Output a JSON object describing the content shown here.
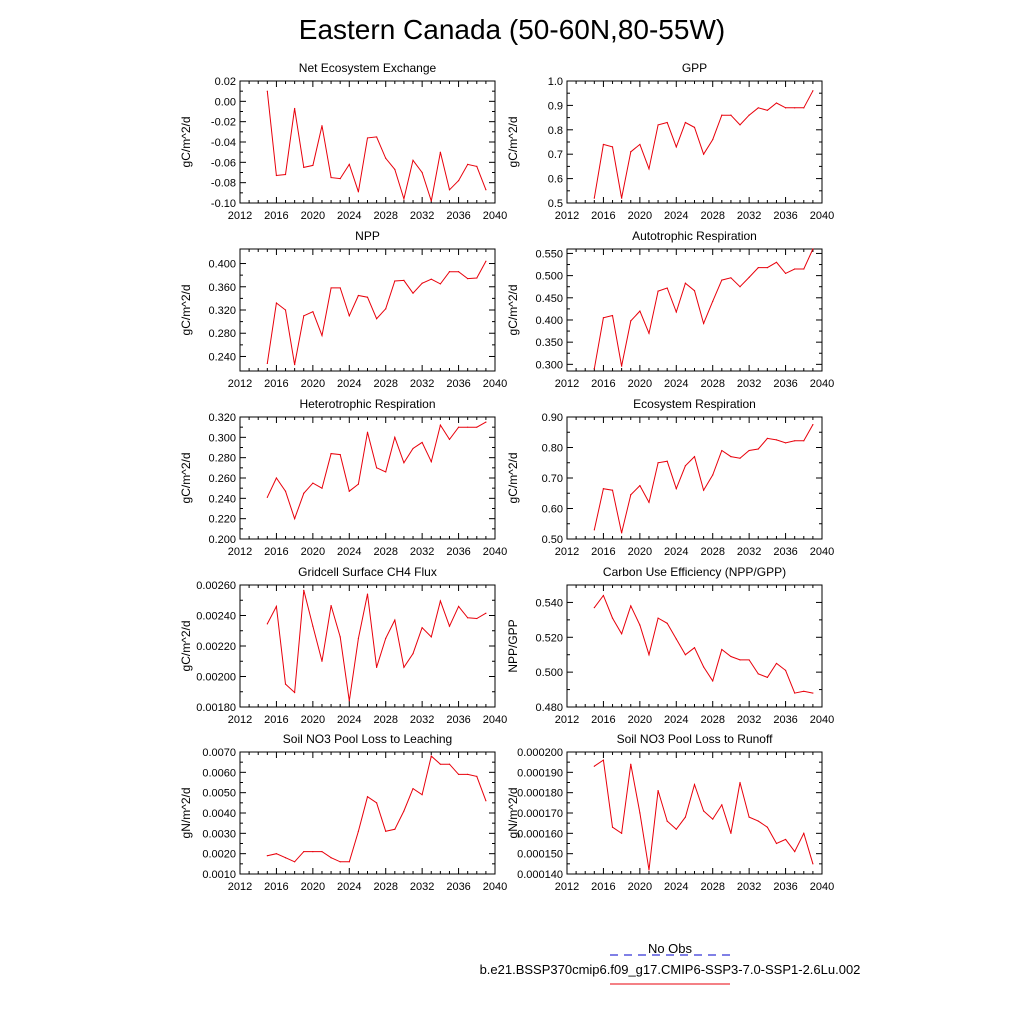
{
  "title": "Eastern Canada (50-60N,80-55W)",
  "series_color": "#e8000b",
  "obs_color": "#0000cc",
  "legend": [
    {
      "label": "No Obs",
      "color": "#0000cc",
      "style": "dashed"
    },
    {
      "label": "b.e21.BSSP370cmip6.f09_g17.CMIP6-SSP3-7.0-SSP1-2.6Lu.002",
      "color": "#e8000b",
      "style": "solid"
    }
  ],
  "chart_data": [
    {
      "type": "line",
      "title": "Net Ecosystem Exchange",
      "xlabel": "",
      "ylabel": "gC/m^2/d",
      "xlim": [
        2012,
        2040
      ],
      "ylim": [
        -0.1,
        0.02
      ],
      "xticks": [
        2012,
        2016,
        2020,
        2024,
        2028,
        2032,
        2036,
        2040
      ],
      "xtick_labels": [
        "2012",
        "2016",
        "2020",
        "2024",
        "2028",
        "2032",
        "2036",
        "2040"
      ],
      "yticks": [
        -0.1,
        -0.08,
        -0.06,
        -0.04,
        -0.02,
        0.0,
        0.02
      ],
      "ytick_labels": [
        "-0.10",
        "-0.08",
        "-0.06",
        "-0.04",
        "-0.02",
        "0.00",
        "0.02"
      ],
      "x": [
        2015,
        2016,
        2017,
        2018,
        2019,
        2020,
        2021,
        2022,
        2023,
        2024,
        2025,
        2026,
        2027,
        2028,
        2029,
        2030,
        2031,
        2032,
        2033,
        2034,
        2035,
        2036,
        2037,
        2038,
        2039
      ],
      "values": [
        0.01,
        -0.073,
        -0.072,
        -0.007,
        -0.065,
        -0.063,
        -0.024,
        -0.075,
        -0.076,
        -0.062,
        -0.089,
        -0.036,
        -0.035,
        -0.056,
        -0.067,
        -0.096,
        -0.058,
        -0.07,
        -0.098,
        -0.05,
        -0.087,
        -0.078,
        -0.062,
        -0.064,
        -0.087
      ]
    },
    {
      "type": "line",
      "title": "GPP",
      "xlabel": "",
      "ylabel": "gC/m^2/d",
      "xlim": [
        2012,
        2040
      ],
      "ylim": [
        0.5,
        1.0
      ],
      "xticks": [
        2012,
        2016,
        2020,
        2024,
        2028,
        2032,
        2036,
        2040
      ],
      "xtick_labels": [
        "2012",
        "2016",
        "2020",
        "2024",
        "2028",
        "2032",
        "2036",
        "2040"
      ],
      "yticks": [
        0.5,
        0.6,
        0.7,
        0.8,
        0.9,
        1.0
      ],
      "ytick_labels": [
        "0.5",
        "0.6",
        "0.7",
        "0.8",
        "0.9",
        "1.0"
      ],
      "x": [
        2015,
        2016,
        2017,
        2018,
        2019,
        2020,
        2021,
        2022,
        2023,
        2024,
        2025,
        2026,
        2027,
        2028,
        2029,
        2030,
        2031,
        2032,
        2033,
        2034,
        2035,
        2036,
        2037,
        2038,
        2039
      ],
      "values": [
        0.52,
        0.74,
        0.73,
        0.52,
        0.71,
        0.74,
        0.64,
        0.82,
        0.83,
        0.73,
        0.83,
        0.81,
        0.7,
        0.76,
        0.86,
        0.86,
        0.82,
        0.86,
        0.89,
        0.88,
        0.91,
        0.89,
        0.89,
        0.89,
        0.96
      ]
    },
    {
      "type": "line",
      "title": "NPP",
      "xlabel": "",
      "ylabel": "gC/m^2/d",
      "xlim": [
        2012,
        2040
      ],
      "ylim": [
        0.215,
        0.425
      ],
      "xticks": [
        2012,
        2016,
        2020,
        2024,
        2028,
        2032,
        2036,
        2040
      ],
      "xtick_labels": [
        "2012",
        "2016",
        "2020",
        "2024",
        "2028",
        "2032",
        "2036",
        "2040"
      ],
      "yticks": [
        0.24,
        0.28,
        0.32,
        0.36,
        0.4
      ],
      "ytick_labels": [
        "0.240",
        "0.280",
        "0.320",
        "0.360",
        "0.400"
      ],
      "x": [
        2015,
        2016,
        2017,
        2018,
        2019,
        2020,
        2021,
        2022,
        2023,
        2024,
        2025,
        2026,
        2027,
        2028,
        2029,
        2030,
        2031,
        2032,
        2033,
        2034,
        2035,
        2036,
        2037,
        2038,
        2039
      ],
      "values": [
        0.228,
        0.332,
        0.32,
        0.226,
        0.31,
        0.317,
        0.276,
        0.358,
        0.358,
        0.31,
        0.345,
        0.342,
        0.305,
        0.322,
        0.37,
        0.371,
        0.349,
        0.366,
        0.373,
        0.365,
        0.386,
        0.386,
        0.374,
        0.375,
        0.404
      ]
    },
    {
      "type": "line",
      "title": "Autotrophic Respiration",
      "xlabel": "",
      "ylabel": "gC/m^2/d",
      "xlim": [
        2012,
        2040
      ],
      "ylim": [
        0.285,
        0.56
      ],
      "xticks": [
        2012,
        2016,
        2020,
        2024,
        2028,
        2032,
        2036,
        2040
      ],
      "xtick_labels": [
        "2012",
        "2016",
        "2020",
        "2024",
        "2028",
        "2032",
        "2036",
        "2040"
      ],
      "yticks": [
        0.3,
        0.35,
        0.4,
        0.45,
        0.5,
        0.55
      ],
      "ytick_labels": [
        "0.300",
        "0.350",
        "0.400",
        "0.450",
        "0.500",
        "0.550"
      ],
      "x": [
        2015,
        2016,
        2017,
        2018,
        2019,
        2020,
        2021,
        2022,
        2023,
        2024,
        2025,
        2026,
        2027,
        2028,
        2029,
        2030,
        2031,
        2032,
        2033,
        2034,
        2035,
        2036,
        2037,
        2038,
        2039
      ],
      "values": [
        0.29,
        0.405,
        0.41,
        0.296,
        0.398,
        0.42,
        0.37,
        0.465,
        0.472,
        0.418,
        0.483,
        0.466,
        0.392,
        0.442,
        0.49,
        0.495,
        0.475,
        0.496,
        0.518,
        0.518,
        0.53,
        0.505,
        0.515,
        0.515,
        0.56
      ]
    },
    {
      "type": "line",
      "title": "Heterotrophic Respiration",
      "xlabel": "",
      "ylabel": "gC/m^2/d",
      "xlim": [
        2012,
        2040
      ],
      "ylim": [
        0.2,
        0.32
      ],
      "xticks": [
        2012,
        2016,
        2020,
        2024,
        2028,
        2032,
        2036,
        2040
      ],
      "xtick_labels": [
        "2012",
        "2016",
        "2020",
        "2024",
        "2028",
        "2032",
        "2036",
        "2040"
      ],
      "yticks": [
        0.2,
        0.22,
        0.24,
        0.26,
        0.28,
        0.3,
        0.32
      ],
      "ytick_labels": [
        "0.200",
        "0.220",
        "0.240",
        "0.260",
        "0.280",
        "0.300",
        "0.320"
      ],
      "x": [
        2015,
        2016,
        2017,
        2018,
        2019,
        2020,
        2021,
        2022,
        2023,
        2024,
        2025,
        2026,
        2027,
        2028,
        2029,
        2030,
        2031,
        2032,
        2033,
        2034,
        2035,
        2036,
        2037,
        2038,
        2039
      ],
      "values": [
        0.241,
        0.26,
        0.247,
        0.22,
        0.245,
        0.255,
        0.25,
        0.284,
        0.283,
        0.247,
        0.254,
        0.305,
        0.27,
        0.266,
        0.3,
        0.275,
        0.289,
        0.295,
        0.276,
        0.312,
        0.298,
        0.31,
        0.31,
        0.31,
        0.315
      ]
    },
    {
      "type": "line",
      "title": "Ecosystem Respiration",
      "xlabel": "",
      "ylabel": "gC/m^2/d",
      "xlim": [
        2012,
        2040
      ],
      "ylim": [
        0.5,
        0.9
      ],
      "xticks": [
        2012,
        2016,
        2020,
        2024,
        2028,
        2032,
        2036,
        2040
      ],
      "xtick_labels": [
        "2012",
        "2016",
        "2020",
        "2024",
        "2028",
        "2032",
        "2036",
        "2040"
      ],
      "yticks": [
        0.5,
        0.6,
        0.7,
        0.8,
        0.9
      ],
      "ytick_labels": [
        "0.50",
        "0.60",
        "0.70",
        "0.80",
        "0.90"
      ],
      "x": [
        2015,
        2016,
        2017,
        2018,
        2019,
        2020,
        2021,
        2022,
        2023,
        2024,
        2025,
        2026,
        2027,
        2028,
        2029,
        2030,
        2031,
        2032,
        2033,
        2034,
        2035,
        2036,
        2037,
        2038,
        2039
      ],
      "values": [
        0.53,
        0.665,
        0.66,
        0.52,
        0.645,
        0.675,
        0.62,
        0.75,
        0.755,
        0.665,
        0.74,
        0.77,
        0.66,
        0.71,
        0.79,
        0.77,
        0.765,
        0.79,
        0.795,
        0.83,
        0.825,
        0.815,
        0.822,
        0.822,
        0.875
      ]
    },
    {
      "type": "line",
      "title": "Gridcell Surface CH4 Flux",
      "xlabel": "",
      "ylabel": "gC/m^2/d",
      "xlim": [
        2012,
        2040
      ],
      "ylim": [
        0.0018,
        0.0026
      ],
      "xticks": [
        2012,
        2016,
        2020,
        2024,
        2028,
        2032,
        2036,
        2040
      ],
      "xtick_labels": [
        "2012",
        "2016",
        "2020",
        "2024",
        "2028",
        "2032",
        "2036",
        "2040"
      ],
      "yticks": [
        0.0018,
        0.002,
        0.0022,
        0.0024,
        0.0026
      ],
      "ytick_labels": [
        "0.00180",
        "0.00200",
        "0.00220",
        "0.00240",
        "0.00260"
      ],
      "x": [
        2015,
        2016,
        2017,
        2018,
        2019,
        2020,
        2021,
        2022,
        2023,
        2024,
        2025,
        2026,
        2027,
        2028,
        2029,
        2030,
        2031,
        2032,
        2033,
        2034,
        2035,
        2036,
        2037,
        2038,
        2039
      ],
      "values": [
        0.002345,
        0.00246,
        0.00195,
        0.001895,
        0.002565,
        0.00233,
        0.0021,
        0.002465,
        0.00226,
        0.00184,
        0.00225,
        0.00254,
        0.00206,
        0.00225,
        0.00237,
        0.00206,
        0.00215,
        0.00232,
        0.00226,
        0.002495,
        0.00233,
        0.00246,
        0.002385,
        0.00238,
        0.002415
      ]
    },
    {
      "type": "line",
      "title": "Carbon Use Efficiency (NPP/GPP)",
      "xlabel": "",
      "ylabel": "NPP/GPP",
      "xlim": [
        2012,
        2040
      ],
      "ylim": [
        0.48,
        0.55
      ],
      "xticks": [
        2012,
        2016,
        2020,
        2024,
        2028,
        2032,
        2036,
        2040
      ],
      "xtick_labels": [
        "2012",
        "2016",
        "2020",
        "2024",
        "2028",
        "2032",
        "2036",
        "2040"
      ],
      "yticks": [
        0.48,
        0.5,
        0.52,
        0.54
      ],
      "ytick_labels": [
        "0.480",
        "0.500",
        "0.520",
        "0.540"
      ],
      "x": [
        2015,
        2016,
        2017,
        2018,
        2019,
        2020,
        2021,
        2022,
        2023,
        2024,
        2025,
        2026,
        2027,
        2028,
        2029,
        2030,
        2031,
        2032,
        2033,
        2034,
        2035,
        2036,
        2037,
        2038,
        2039
      ],
      "values": [
        0.537,
        0.544,
        0.531,
        0.522,
        0.538,
        0.527,
        0.51,
        0.531,
        0.528,
        0.519,
        0.51,
        0.514,
        0.503,
        0.495,
        0.513,
        0.509,
        0.507,
        0.507,
        0.499,
        0.497,
        0.505,
        0.501,
        0.488,
        0.489,
        0.488
      ]
    },
    {
      "type": "line",
      "title": "Soil NO3 Pool Loss to Leaching",
      "xlabel": "",
      "ylabel": "gN/m^2/d",
      "xlim": [
        2012,
        2040
      ],
      "ylim": [
        0.001,
        0.007
      ],
      "xticks": [
        2012,
        2016,
        2020,
        2024,
        2028,
        2032,
        2036,
        2040
      ],
      "xtick_labels": [
        "2012",
        "2016",
        "2020",
        "2024",
        "2028",
        "2032",
        "2036",
        "2040"
      ],
      "yticks": [
        0.001,
        0.002,
        0.003,
        0.004,
        0.005,
        0.006,
        0.007
      ],
      "ytick_labels": [
        "0.0010",
        "0.0020",
        "0.0030",
        "0.0040",
        "0.0050",
        "0.0060",
        "0.0070"
      ],
      "x": [
        2015,
        2016,
        2017,
        2018,
        2019,
        2020,
        2021,
        2022,
        2023,
        2024,
        2025,
        2026,
        2027,
        2028,
        2029,
        2030,
        2031,
        2032,
        2033,
        2034,
        2035,
        2036,
        2037,
        2038,
        2039
      ],
      "values": [
        0.0019,
        0.002,
        0.0018,
        0.0016,
        0.0021,
        0.0021,
        0.0021,
        0.0018,
        0.0016,
        0.0016,
        0.0031,
        0.0048,
        0.0045,
        0.0031,
        0.0032,
        0.0041,
        0.0052,
        0.0049,
        0.0068,
        0.0064,
        0.0064,
        0.0059,
        0.0059,
        0.0058,
        0.0046
      ]
    },
    {
      "type": "line",
      "title": "Soil NO3 Pool Loss to Runoff",
      "xlabel": "",
      "ylabel": "gN/m^2/d",
      "xlim": [
        2012,
        2040
      ],
      "ylim": [
        0.00014,
        0.0002
      ],
      "xticks": [
        2012,
        2016,
        2020,
        2024,
        2028,
        2032,
        2036,
        2040
      ],
      "xtick_labels": [
        "2012",
        "2016",
        "2020",
        "2024",
        "2028",
        "2032",
        "2036",
        "2040"
      ],
      "yticks": [
        0.00014,
        0.00015,
        0.00016,
        0.00017,
        0.00018,
        0.00019,
        0.0002
      ],
      "ytick_labels": [
        "0.000140",
        "0.000150",
        "0.000160",
        "0.000170",
        "0.000180",
        "0.000190",
        "0.000200"
      ],
      "x": [
        2015,
        2016,
        2017,
        2018,
        2019,
        2020,
        2021,
        2022,
        2023,
        2024,
        2025,
        2026,
        2027,
        2028,
        2029,
        2030,
        2031,
        2032,
        2033,
        2034,
        2035,
        2036,
        2037,
        2038,
        2039
      ],
      "values": [
        0.000193,
        0.000196,
        0.000163,
        0.00016,
        0.000194,
        0.00017,
        0.000142,
        0.000181,
        0.000166,
        0.000162,
        0.000168,
        0.000184,
        0.000171,
        0.000167,
        0.000174,
        0.00016,
        0.000185,
        0.000168,
        0.000166,
        0.000163,
        0.000155,
        0.000157,
        0.000151,
        0.00016,
        0.000145
      ]
    }
  ]
}
